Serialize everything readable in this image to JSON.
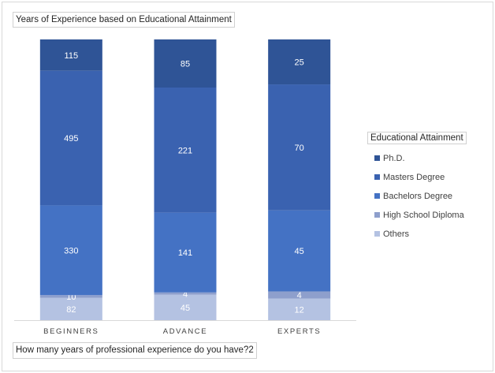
{
  "chart_data": {
    "type": "bar",
    "stacked": true,
    "title": "Years of Experience based on Educational Attainment",
    "xlabel": "How many years of professional experience do you have?2",
    "categories": [
      "BEGINNERS",
      "ADVANCE",
      "EXPERTS"
    ],
    "legend_title": "Educational Attainment",
    "legend_position": "right",
    "grid": false,
    "series": [
      {
        "name": "Others",
        "values": [
          82,
          45,
          12
        ],
        "color": "#b4c2e2"
      },
      {
        "name": "High School Diploma",
        "values": [
          10,
          4,
          4
        ],
        "color": "#8e9fcc"
      },
      {
        "name": "Bachelors Degree",
        "values": [
          330,
          141,
          45
        ],
        "color": "#4472c4"
      },
      {
        "name": "Masters Degree",
        "values": [
          495,
          221,
          70
        ],
        "color": "#3a62b0"
      },
      {
        "name": "Ph.D.",
        "values": [
          115,
          85,
          25
        ],
        "color": "#2f5496"
      }
    ]
  }
}
